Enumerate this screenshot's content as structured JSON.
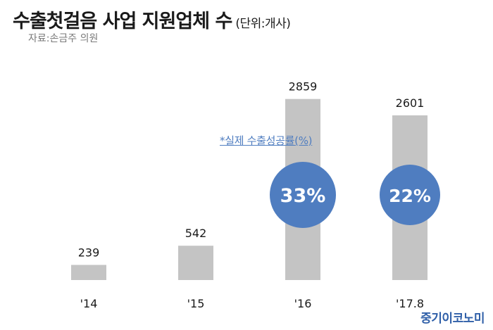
{
  "header": {
    "title": "수출첫걸음 사업 지원업체 수",
    "unit": "(단위:개사)",
    "source": "자료:손금주 의원"
  },
  "legend_note": "*실제 수출성공률(%)",
  "brand": "중기이코노미",
  "chart_data": {
    "type": "bar",
    "categories": [
      "'14",
      "'15",
      "'16",
      "'17.8"
    ],
    "values": [
      239,
      542,
      2859,
      2601
    ],
    "success_rate_labels": [
      null,
      null,
      "33%",
      "22%"
    ],
    "ylim": [
      0,
      3000
    ],
    "grid": false,
    "bar_color": "#c4c4c4",
    "bubble_color": "#4f7dc0"
  }
}
